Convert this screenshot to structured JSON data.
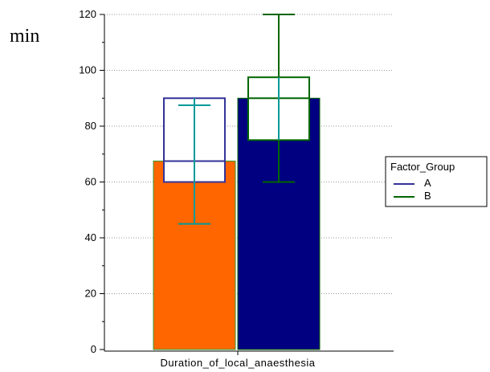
{
  "chart_data": {
    "type": "bar",
    "ylabel": "min",
    "xlabel": "Duration_of_local_anaesthesia",
    "ylim": [
      0,
      120
    ],
    "yticks": [
      0,
      20,
      40,
      60,
      80,
      100,
      120
    ],
    "grid": true,
    "legend_title": "Factor_Group",
    "legend_position": "right",
    "series": [
      {
        "name": "A",
        "bar_value": 67.5,
        "bar_color": "#ff6600",
        "box": {
          "q1": 60,
          "median": 67.5,
          "q3": 90
        },
        "whisker": {
          "low": 45,
          "high": 87.5
        },
        "box_color": "#333399",
        "whisker_color": "#009999"
      },
      {
        "name": "B",
        "bar_value": 90,
        "bar_color": "#000080",
        "box": {
          "q1": 75,
          "median": 90,
          "q3": 97.5
        },
        "whisker": {
          "low": 60,
          "high": 120
        },
        "box_color": "#006600",
        "whisker_color": "#009999",
        "whisker_outer_color": "#006600"
      }
    ]
  },
  "legend": {
    "title": "Factor_Group",
    "items": [
      {
        "label": "A",
        "color": "#333399"
      },
      {
        "label": "B",
        "color": "#006600"
      }
    ]
  }
}
